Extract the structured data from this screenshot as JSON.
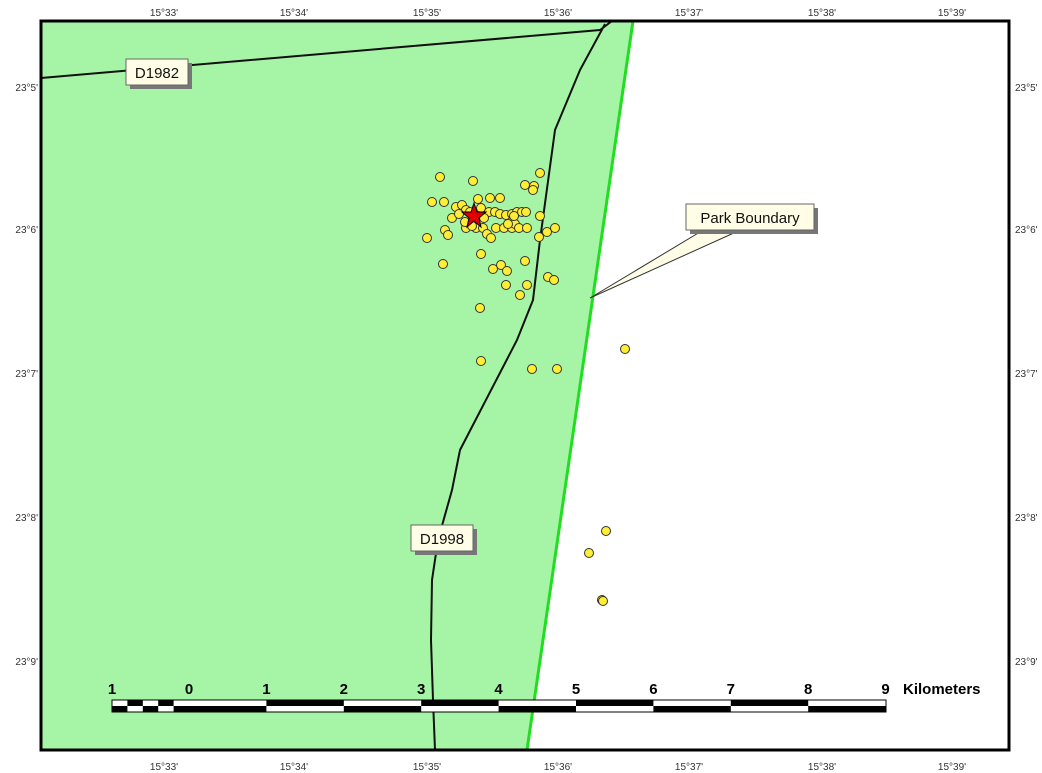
{
  "colors": {
    "park_fill": "#a6f5a6",
    "park_boundary": "#22dd22",
    "road": "#111111",
    "point_fill": "#ffee33",
    "point_stroke": "#333333",
    "star": "#e00000",
    "label_bg": "#fffde6"
  },
  "top_ticks": [
    "15°33'",
    "15°34'",
    "15°35'",
    "15°36'",
    "15°37'",
    "15°38'",
    "15°39'"
  ],
  "bottom_ticks": [
    "15°33'",
    "15°34'",
    "15°35'",
    "15°36'",
    "15°37'",
    "15°38'",
    "15°39'"
  ],
  "left_ticks": [
    "23°5'",
    "23°6'",
    "23°7'",
    "23°8'",
    "23°9'"
  ],
  "right_ticks": [
    "23°5'",
    "23°6'",
    "23°7'",
    "23°8'",
    "23°9'"
  ],
  "roads": [
    {
      "label": "D1982"
    },
    {
      "label": "D1998"
    }
  ],
  "park_boundary_label": "Park Boundary",
  "scale_bar": {
    "labels": [
      "1",
      "0",
      "1",
      "2",
      "3",
      "4",
      "5",
      "6",
      "7",
      "8",
      "9"
    ],
    "unit": "Kilometers"
  }
}
